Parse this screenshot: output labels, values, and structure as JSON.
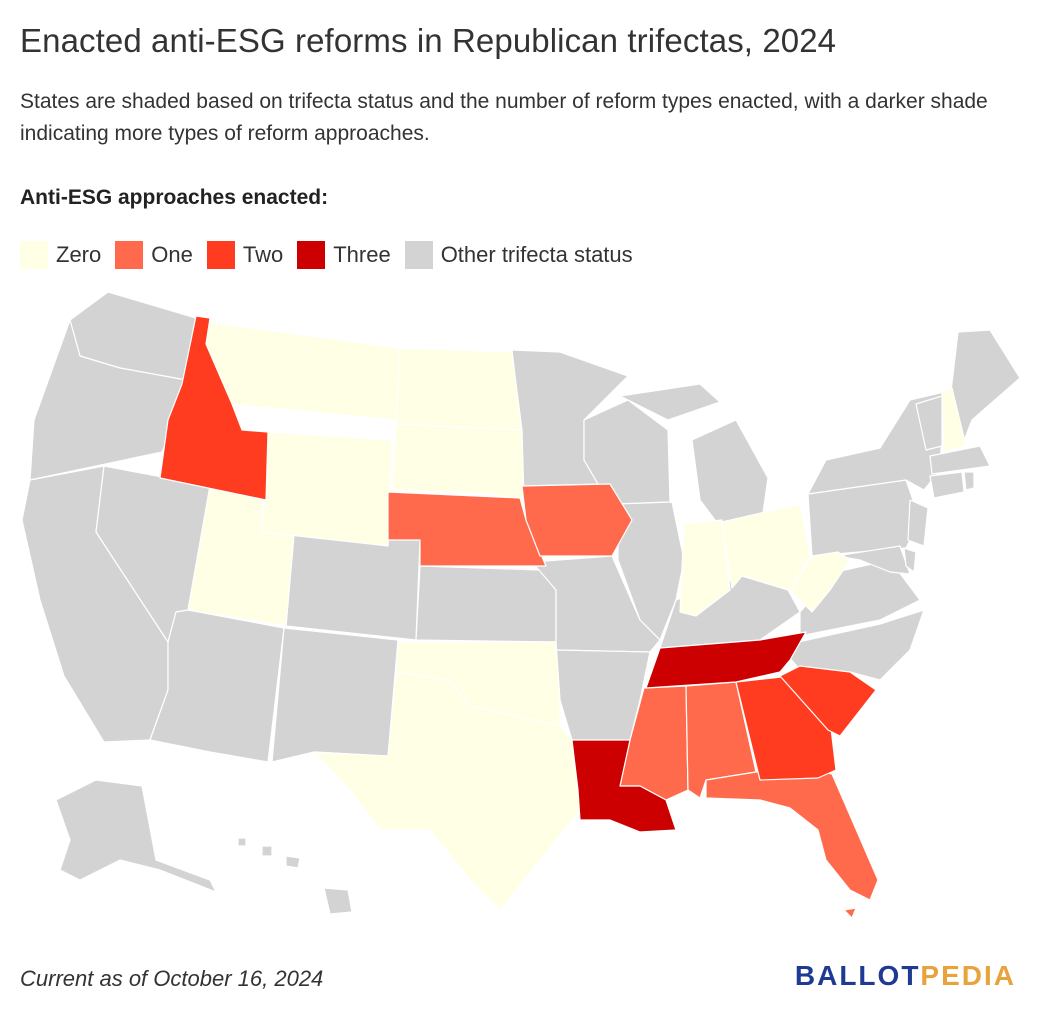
{
  "title": "Enacted anti-ESG reforms in Republican trifectas, 2024",
  "subtitle": "States are shaded based on trifecta status and the number of reform types enacted, with a darker shade indicating more types of reform approaches.",
  "legend": {
    "title": "Anti-ESG approaches enacted:",
    "items": [
      {
        "label": "Zero",
        "color": "#ffffe6"
      },
      {
        "label": "One",
        "color": "#ff6a4d"
      },
      {
        "label": "Two",
        "color": "#ff3c1f"
      },
      {
        "label": "Three",
        "color": "#cc0000"
      },
      {
        "label": "Other trifecta status",
        "color": "#d3d3d3"
      }
    ]
  },
  "colors": {
    "zero": "#ffffe6",
    "one": "#ff6a4d",
    "two": "#ff3c1f",
    "three": "#cc0000",
    "other": "#d3d3d3"
  },
  "states": {
    "zero": [
      "Montana",
      "Wyoming",
      "North Dakota",
      "South Dakota",
      "Utah",
      "Oklahoma",
      "Texas",
      "Indiana",
      "Ohio",
      "West Virginia",
      "New Hampshire"
    ],
    "one": [
      "Nebraska",
      "Iowa",
      "Mississippi",
      "Alabama",
      "Florida"
    ],
    "two": [
      "Idaho",
      "Georgia",
      "South Carolina"
    ],
    "three": [
      "Tennessee",
      "Louisiana"
    ]
  },
  "footer": "Current as of October 16, 2024",
  "logo": {
    "part1": "BALLOT",
    "part2": "PEDIA"
  }
}
